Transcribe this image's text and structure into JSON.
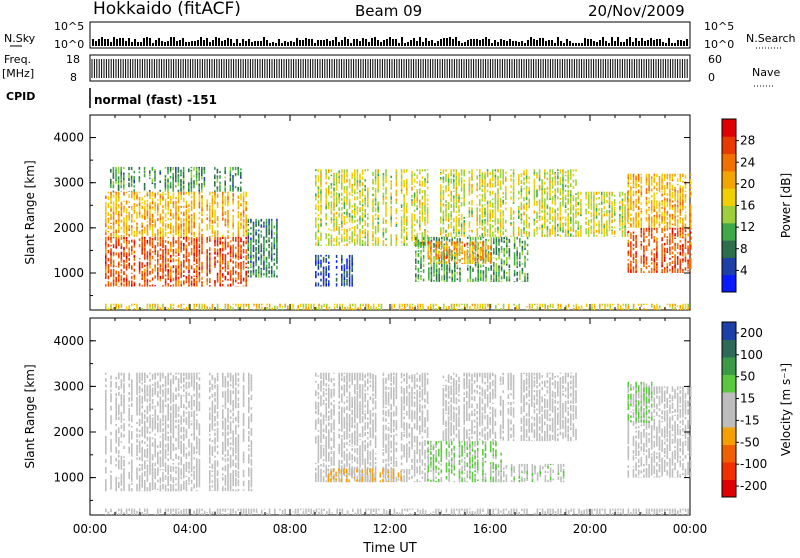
{
  "header": {
    "station": "Hokkaido (fitACF)",
    "beam": "Beam 09",
    "date": "20/Nov/2009"
  },
  "strip_panels": {
    "nsky_label": "N.Sky",
    "nsky_ticks": [
      "10^5",
      "10^0"
    ],
    "nsearch_label": "N.Search",
    "nsearch_ticks": [
      "10^5",
      "10^0"
    ],
    "freq_label_1": "Freq.",
    "freq_label_2": "[MHz]",
    "freq_ticks": [
      "18",
      "8"
    ],
    "nave_label": "Nave",
    "nave_ticks": [
      "60",
      "0"
    ],
    "cpid_label": "CPID",
    "cpid_value": "normal (fast) -151"
  },
  "colors": {
    "power": [
      "#0a1aff",
      "#1f3fa8",
      "#2c6f4a",
      "#3fa94a",
      "#9ccf3a",
      "#f0d000",
      "#f2a500",
      "#f07000",
      "#e83a00",
      "#e00000"
    ],
    "velocity": [
      "#e00000",
      "#f03000",
      "#f06000",
      "#f4a000",
      "#bdbdbd",
      "#bdbdbd",
      "#5ac83c",
      "#3a9a45",
      "#2e6a5a",
      "#1c3fa8"
    ]
  },
  "chart_data": [
    {
      "type": "heatmap",
      "title": "",
      "ylabel": "Slant Range [km]",
      "xlabel": "",
      "ylim": [
        180,
        4500
      ],
      "yticks": [
        "1000",
        "2000",
        "3000",
        "4000"
      ],
      "xlim_hours": [
        0,
        24
      ],
      "colorbar_label": "Power [dB]",
      "colorbar_ticks": [
        "4",
        "8",
        "12",
        "16",
        "20",
        "24",
        "28"
      ],
      "colorbar_range": [
        0,
        32
      ],
      "regions": [
        {
          "t0": 0.6,
          "t1": 6.3,
          "r0": 700,
          "r1": 1800,
          "value": 26
        },
        {
          "t0": 0.6,
          "t1": 6.3,
          "r0": 1800,
          "r1": 2800,
          "value": 20
        },
        {
          "t0": 0.8,
          "t1": 6.0,
          "r0": 2800,
          "r1": 3350,
          "value": 10
        },
        {
          "t0": 6.3,
          "t1": 7.5,
          "r0": 900,
          "r1": 2200,
          "value": 9
        },
        {
          "t0": 9.0,
          "t1": 10.5,
          "r0": 700,
          "r1": 1400,
          "value": 5
        },
        {
          "t0": 9.0,
          "t1": 13.5,
          "r0": 1600,
          "r1": 3300,
          "value": 16
        },
        {
          "t0": 13.0,
          "t1": 17.5,
          "r0": 800,
          "r1": 1800,
          "value": 11
        },
        {
          "t0": 13.5,
          "t1": 16.0,
          "r0": 1200,
          "r1": 1700,
          "value": 22
        },
        {
          "t0": 14.0,
          "t1": 19.5,
          "r0": 1800,
          "r1": 3300,
          "value": 16
        },
        {
          "t0": 19.5,
          "t1": 21.5,
          "r0": 1800,
          "r1": 2800,
          "value": 16
        },
        {
          "t0": 21.5,
          "t1": 24.0,
          "r0": 1000,
          "r1": 2000,
          "value": 26
        },
        {
          "t0": 21.5,
          "t1": 24.0,
          "r0": 2000,
          "r1": 3200,
          "value": 20
        },
        {
          "t0": 0.6,
          "t1": 24.0,
          "r0": 180,
          "r1": 320,
          "value": 18
        }
      ]
    },
    {
      "type": "heatmap",
      "title": "",
      "ylabel": "Slant Range [km]",
      "xlabel": "Time UT",
      "ylim": [
        180,
        4500
      ],
      "yticks": [
        "1000",
        "2000",
        "3000",
        "4000"
      ],
      "xticks": [
        "00:00",
        "04:00",
        "08:00",
        "12:00",
        "16:00",
        "20:00",
        "00:00"
      ],
      "xlim_hours": [
        0,
        24
      ],
      "colorbar_label": "Velocity [m s⁻¹]",
      "colorbar_ticks": [
        "200",
        "100",
        "50",
        "15",
        "-15",
        "-50",
        "-100",
        "-200"
      ],
      "colorbar_range": [
        -250,
        250
      ],
      "regions": [
        {
          "t0": 0.6,
          "t1": 6.5,
          "r0": 700,
          "r1": 3300,
          "value": 0
        },
        {
          "t0": 9.0,
          "t1": 13.5,
          "r0": 900,
          "r1": 3300,
          "value": 0
        },
        {
          "t0": 9.5,
          "t1": 12.5,
          "r0": 900,
          "r1": 1200,
          "value": -60
        },
        {
          "t0": 13.5,
          "t1": 16.5,
          "r0": 900,
          "r1": 1800,
          "value": 60
        },
        {
          "t0": 14.0,
          "t1": 19.5,
          "r0": 1800,
          "r1": 3300,
          "value": 0
        },
        {
          "t0": 16.0,
          "t1": 19.0,
          "r0": 900,
          "r1": 1300,
          "value": 30
        },
        {
          "t0": 21.5,
          "t1": 24.0,
          "r0": 1000,
          "r1": 3000,
          "value": 0
        },
        {
          "t0": 21.5,
          "t1": 22.5,
          "r0": 2200,
          "r1": 3100,
          "value": 60
        },
        {
          "t0": 0.6,
          "t1": 24.0,
          "r0": 180,
          "r1": 320,
          "value": 0
        }
      ]
    }
  ]
}
